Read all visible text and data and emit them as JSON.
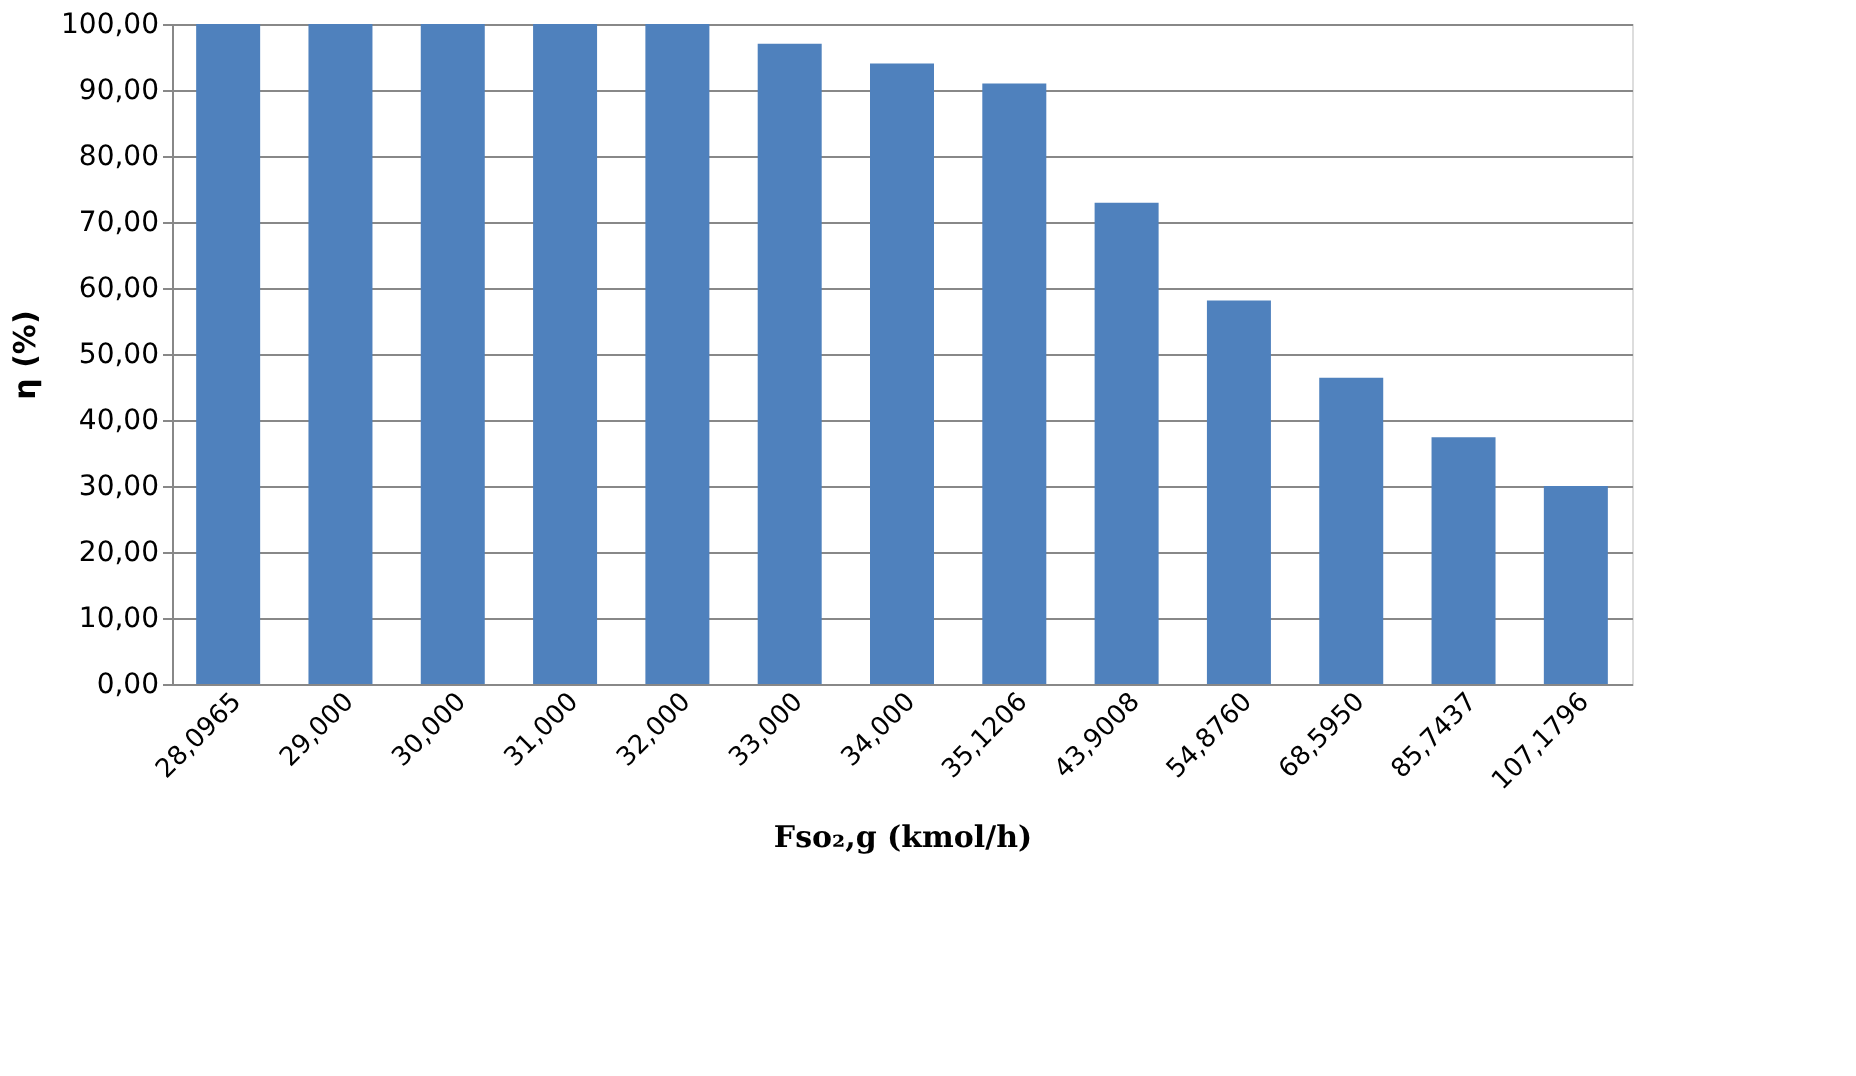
{
  "chart_data": {
    "type": "bar",
    "xlabel": "Fso₂,g (kmol/h)",
    "ylabel": "η (%)",
    "categories": [
      "28,0965",
      "29,000",
      "30,000",
      "31,000",
      "32,000",
      "33,000",
      "34,000",
      "35,1206",
      "43,9008",
      "54,8760",
      "68,5950",
      "85,7437",
      "107,1796"
    ],
    "values": [
      100,
      100,
      100,
      100,
      100,
      97,
      94,
      91,
      72.9,
      58.1,
      46.4,
      37.4,
      30
    ],
    "color": "#4f81bd",
    "ylim": [
      0,
      100
    ],
    "yticks": [
      {
        "value": 0,
        "label": "0,00"
      },
      {
        "value": 10,
        "label": "10,00"
      },
      {
        "value": 20,
        "label": "20,00"
      },
      {
        "value": 30,
        "label": "30,00"
      },
      {
        "value": 40,
        "label": "40,00"
      },
      {
        "value": 50,
        "label": "50,00"
      },
      {
        "value": 60,
        "label": "60,00"
      },
      {
        "value": 70,
        "label": "70,00"
      },
      {
        "value": 80,
        "label": "80,00"
      },
      {
        "value": 90,
        "label": "90,00"
      },
      {
        "value": 100,
        "label": "100,00"
      }
    ],
    "grid": "y"
  }
}
